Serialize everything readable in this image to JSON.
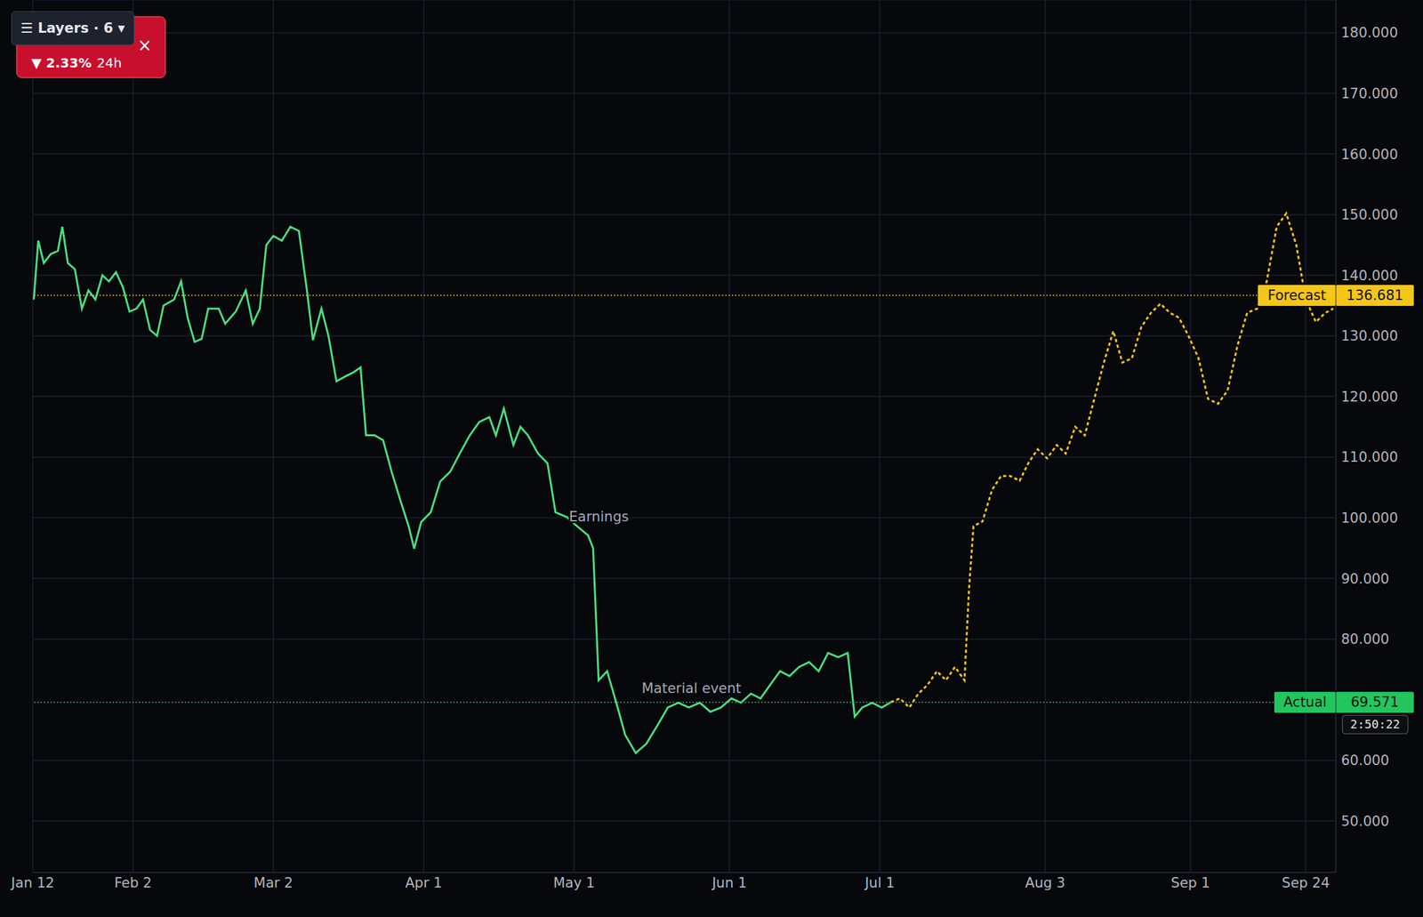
{
  "chart_data": {
    "type": "line",
    "grid": true,
    "xlim": [
      12,
      272
    ],
    "xticks": [
      {
        "value": 12,
        "label": "Jan 12"
      },
      {
        "value": 32,
        "label": "Feb 2"
      },
      {
        "value": 60,
        "label": "Mar 2"
      },
      {
        "value": 90,
        "label": "Apr 1"
      },
      {
        "value": 120,
        "label": "May 1"
      },
      {
        "value": 151,
        "label": "Jun 1"
      },
      {
        "value": 181,
        "label": "Jul 1"
      },
      {
        "value": 214,
        "label": "Aug 3"
      },
      {
        "value": 243,
        "label": "Sep 1"
      },
      {
        "value": 266,
        "label": "Sep 24"
      }
    ],
    "ylim": [
      41.5,
      185.4
    ],
    "yticks": [
      {
        "value": 50,
        "label": "50.000"
      },
      {
        "value": 60,
        "label": "60.000"
      },
      {
        "value": 80,
        "label": "80.000"
      },
      {
        "value": 90,
        "label": "90.000"
      },
      {
        "value": 100,
        "label": "100.000"
      },
      {
        "value": 110,
        "label": "110.000"
      },
      {
        "value": 120,
        "label": "120.000"
      },
      {
        "value": 130,
        "label": "130.000"
      },
      {
        "value": 140,
        "label": "140.000"
      },
      {
        "value": 150,
        "label": "150.000"
      },
      {
        "value": 160,
        "label": "160.000"
      },
      {
        "value": 170,
        "label": "170.000"
      },
      {
        "value": 180,
        "label": "180.000"
      }
    ],
    "series": [
      {
        "name": "Actual",
        "color": "#4ade80",
        "line_style": "solid",
        "x": [
          12.2,
          13.1,
          14.2,
          15.6,
          17,
          17.9,
          19,
          20.4,
          21.8,
          23.1,
          24.5,
          25.9,
          27.2,
          28.6,
          30,
          31.3,
          32.7,
          34,
          35.4,
          36.8,
          38.1,
          40.2,
          41.6,
          42.9,
          44.3,
          45.7,
          47,
          49.1,
          50.4,
          52.5,
          54.5,
          55.9,
          57.3,
          58.6,
          60,
          61.7,
          63.4,
          65.1,
          66.7,
          67.9,
          69.6,
          71,
          72.6,
          74.3,
          76,
          77.4,
          78.5,
          80.2,
          81.9,
          83.6,
          85.3,
          87,
          88.1,
          89.5,
          91.4,
          93.3,
          95.3,
          97.2,
          99.2,
          101.1,
          103.1,
          104.4,
          106,
          107.9,
          109.3,
          110.8,
          112.8,
          114.7,
          116.3,
          118.6,
          120.6,
          122.8,
          123.8,
          124.9,
          126.6,
          128.7,
          130.2,
          132.3,
          134.4,
          136.6,
          138.7,
          140.8,
          142.9,
          145.1,
          147.2,
          149.3,
          151.4,
          153.3,
          155.3,
          157.2,
          159.1,
          161.1,
          163,
          164.9,
          166.9,
          168.8,
          170.7,
          172.7,
          174.6,
          176,
          177.5,
          179.5,
          181.4,
          183.2
        ],
        "values": [
          136,
          145.7,
          142,
          143.5,
          144,
          148,
          142,
          141,
          134.5,
          137.5,
          136,
          140,
          139,
          140.5,
          138,
          134,
          134.5,
          136,
          131,
          130,
          135,
          136,
          139,
          133,
          129,
          129.5,
          134.5,
          134.5,
          132,
          134,
          137.5,
          132,
          134.5,
          145,
          146.5,
          145.7,
          148,
          147.3,
          137.5,
          129.3,
          134.5,
          130,
          122.5,
          123.3,
          124,
          124.8,
          113.6,
          113.6,
          112.8,
          107.6,
          103,
          98.6,
          94.9,
          99.3,
          100.9,
          106,
          107.6,
          110.6,
          113.6,
          115.8,
          116.6,
          113.6,
          118,
          112,
          115,
          113.6,
          110.6,
          109,
          100.9,
          100.1,
          98.6,
          97.1,
          95,
          73.2,
          74.7,
          68.7,
          64.2,
          61.2,
          62.7,
          65.7,
          68.7,
          69.5,
          68.7,
          69.5,
          68,
          68.7,
          70.2,
          69.5,
          71,
          70.2,
          72.4,
          74.7,
          73.9,
          75.4,
          76.2,
          74.7,
          77.7,
          77,
          77.7,
          67.2,
          68.7,
          69.5,
          68.7,
          69.571
        ]
      },
      {
        "name": "Forecast",
        "color": "#f5c518",
        "line_style": "dashed",
        "x": [
          183.2,
          185,
          186.9,
          188.7,
          190.5,
          192.4,
          194.2,
          196,
          197.9,
          198.8,
          199.7,
          201.5,
          203.4,
          205.2,
          207,
          208.9,
          210.7,
          212.5,
          214.4,
          216.3,
          218.1,
          220,
          221.9,
          223.8,
          225.7,
          227.6,
          229.4,
          231.3,
          233.2,
          235.1,
          237,
          238.9,
          240.7,
          242.6,
          244.6,
          246.5,
          248.5,
          250.4,
          252.4,
          254.3,
          256.3,
          258.2,
          260.2,
          262.1,
          264.1,
          266,
          268,
          269.9,
          271.5
        ],
        "values": [
          69.6,
          70.2,
          68.7,
          71,
          72.4,
          74.7,
          73.2,
          75.4,
          73.2,
          88.2,
          98.6,
          99.4,
          104.6,
          106.9,
          106.9,
          106.1,
          109.1,
          111.3,
          109.8,
          112,
          110.6,
          115,
          113.6,
          119.6,
          125.6,
          130.8,
          125.6,
          126.3,
          131.5,
          133.8,
          135.3,
          133.8,
          133,
          130,
          126.3,
          119.6,
          118.8,
          121,
          128.5,
          133.8,
          134.5,
          139,
          148,
          150.2,
          145,
          136,
          132.3,
          133.8,
          134.5
        ]
      }
    ],
    "reference_lines": [
      {
        "label": "Forecast",
        "value": 136.681,
        "value_label": "136.681",
        "color": "#f5c518"
      },
      {
        "label": "Actual",
        "value": 69.571,
        "value_label": "69.571",
        "color": "#22c55e"
      }
    ],
    "annotations": [
      {
        "text": "Earnings",
        "x": 119,
        "y": 99.4
      },
      {
        "text": "Material event",
        "x": 133.5,
        "y": 71.1
      }
    ],
    "badges": {
      "layers": "☰ Layers · 6 ▾",
      "change": "▼ 2.33%",
      "period": "24h",
      "close": "×",
      "timer": "2:50:22"
    }
  }
}
